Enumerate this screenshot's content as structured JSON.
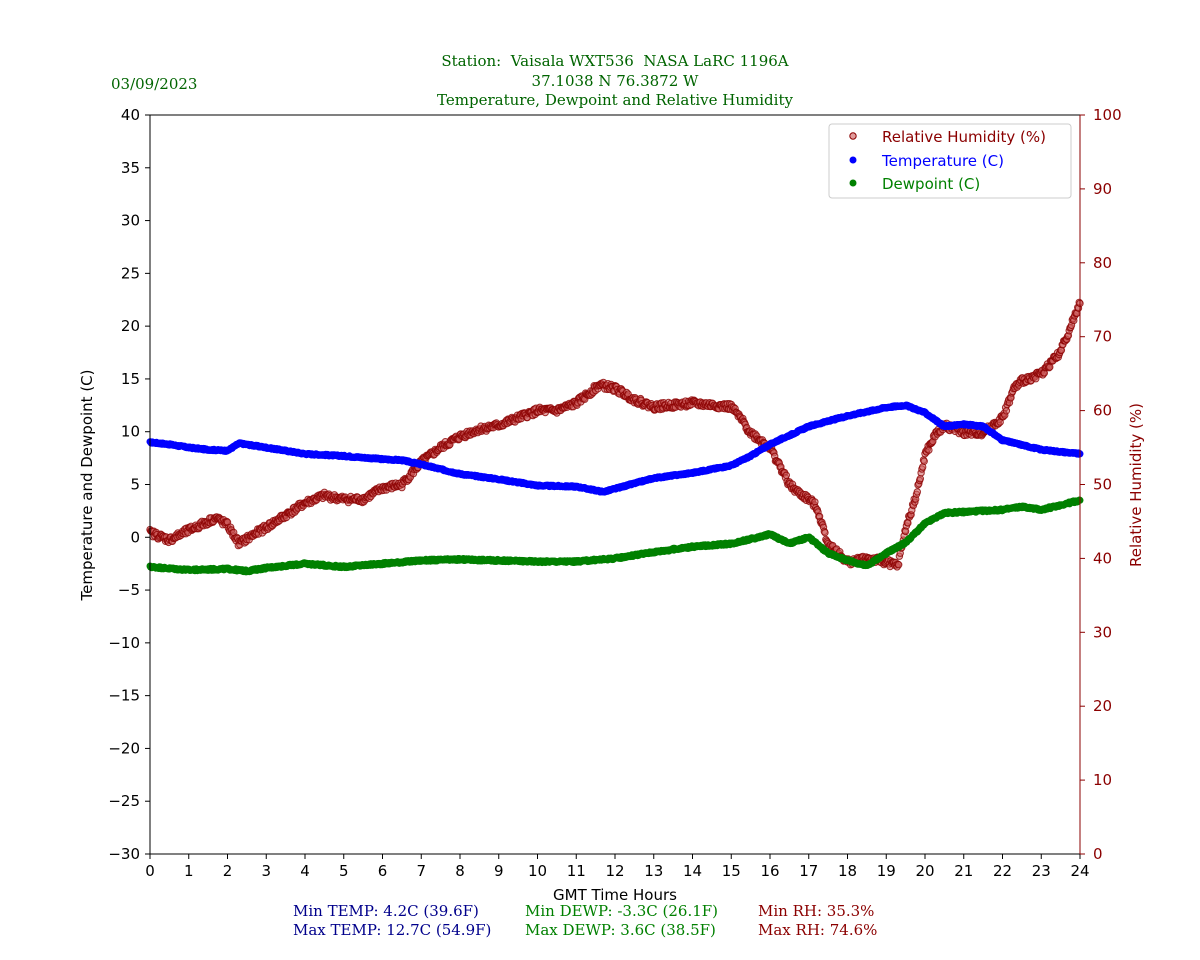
{
  "date": "03/09/2023",
  "title": {
    "line1": "Station:  Vaisala WXT536  NASA LaRC 1196A",
    "line2": "37.1038 N 76.3872 W",
    "line3": "Temperature, Dewpoint and Relative Humidity"
  },
  "axes": {
    "xlabel": "GMT Time Hours",
    "ylabel_left": "Temperature and Dewpoint (C)",
    "ylabel_right": "Relative Humidity (%)"
  },
  "legend": {
    "rh": "Relative Humidity (%)",
    "temp": "Temperature (C)",
    "dewp": "Dewpoint (C)"
  },
  "stats": {
    "min_temp": "Min TEMP: 4.2C (39.6F)",
    "max_temp": "Max TEMP: 12.7C (54.9F)",
    "min_dewp": "Min DEWP: -3.3C (26.1F)",
    "max_dewp": "Max DEWP: 3.6C (38.5F)",
    "min_rh": "Min RH: 35.3%",
    "max_rh": "Max RH: 74.6%"
  },
  "colors": {
    "temp": "#0000ff",
    "dewp": "#008000",
    "rh": "#8b0000",
    "green_text": "#006400",
    "navy_text": "#00008b"
  },
  "chart_data": {
    "type": "scatter",
    "title": "Temperature, Dewpoint and Relative Humidity",
    "xlabel": "GMT Time Hours",
    "ylabel": "Temperature and Dewpoint (C)",
    "y2label": "Relative Humidity (%)",
    "xlim": [
      0,
      24
    ],
    "ylim": [
      -30,
      40
    ],
    "y2lim": [
      0,
      100
    ],
    "xticks": [
      0,
      1,
      2,
      3,
      4,
      5,
      6,
      7,
      8,
      9,
      10,
      11,
      12,
      13,
      14,
      15,
      16,
      17,
      18,
      19,
      20,
      21,
      22,
      23,
      24
    ],
    "yticks": [
      -30,
      -25,
      -20,
      -15,
      -10,
      -5,
      0,
      5,
      10,
      15,
      20,
      25,
      30,
      35,
      40
    ],
    "y2ticks": [
      0,
      10,
      20,
      30,
      40,
      50,
      60,
      70,
      80,
      90,
      100
    ],
    "legend_position": "top-right",
    "series": [
      {
        "name": "Temperature (C)",
        "axis": "left",
        "x": [
          0,
          0.5,
          1,
          1.5,
          2,
          2.3,
          3,
          4,
          5,
          6,
          6.5,
          7,
          8,
          9,
          10,
          11,
          11.7,
          12,
          13,
          14,
          15,
          15.5,
          16,
          17,
          18,
          19,
          19.5,
          20,
          20.5,
          21,
          21.5,
          22,
          23,
          24
        ],
        "y": [
          9.0,
          8.8,
          8.5,
          8.3,
          8.2,
          8.9,
          8.5,
          7.9,
          7.7,
          7.4,
          7.3,
          6.9,
          6.0,
          5.5,
          4.9,
          4.8,
          4.3,
          4.6,
          5.6,
          6.1,
          6.8,
          7.7,
          8.8,
          10.5,
          11.5,
          12.3,
          12.5,
          11.8,
          10.5,
          10.7,
          10.5,
          9.2,
          8.3,
          7.9
        ]
      },
      {
        "name": "Dewpoint (C)",
        "axis": "left",
        "x": [
          0,
          1,
          2,
          2.5,
          3,
          4,
          5,
          6,
          7,
          8,
          9,
          10,
          11,
          12,
          13,
          14,
          15,
          15.7,
          16,
          16.5,
          17,
          17.5,
          18,
          18.5,
          19,
          19.5,
          20,
          20.5,
          21,
          22,
          22.5,
          23,
          24
        ],
        "y": [
          -2.8,
          -3.1,
          -3.0,
          -3.2,
          -2.9,
          -2.5,
          -2.8,
          -2.5,
          -2.2,
          -2.1,
          -2.2,
          -2.3,
          -2.3,
          -2.0,
          -1.4,
          -0.9,
          -0.6,
          0.0,
          0.3,
          -0.6,
          0.0,
          -1.5,
          -2.2,
          -2.7,
          -1.5,
          -0.5,
          1.3,
          2.3,
          2.4,
          2.6,
          2.9,
          2.6,
          3.5
        ]
      },
      {
        "name": "Relative Humidity (%)",
        "axis": "right",
        "x": [
          0,
          0.5,
          1,
          1.5,
          1.7,
          2,
          2.3,
          2.6,
          3,
          4,
          4.5,
          5,
          5.5,
          6,
          6.5,
          7,
          7.5,
          8,
          8.5,
          9,
          10,
          10.5,
          11,
          11.6,
          12,
          12.5,
          13,
          14,
          15,
          15.3,
          15.5,
          16,
          16.3,
          16.5,
          16.7,
          17,
          17.2,
          17.5,
          18,
          18.5,
          19,
          19.3,
          19.5,
          19.8,
          20,
          20.3,
          20.5,
          21,
          21.5,
          22,
          22.3,
          22.5,
          23,
          23.5,
          24
        ],
        "y": [
          43.5,
          42.5,
          43.8,
          45,
          45.5,
          44.5,
          42,
          43,
          44.2,
          47.5,
          48.5,
          48,
          48,
          49.5,
          50,
          53,
          55,
          56.5,
          57.5,
          58,
          60,
          60,
          61,
          63.5,
          63,
          61.5,
          60.5,
          61,
          60.5,
          58.5,
          57,
          55,
          52,
          50,
          49,
          48,
          47,
          42,
          39.5,
          40,
          39.5,
          39,
          44,
          49,
          54,
          57,
          58,
          57,
          57,
          59,
          63,
          64,
          65,
          68,
          74.5
        ]
      }
    ]
  }
}
